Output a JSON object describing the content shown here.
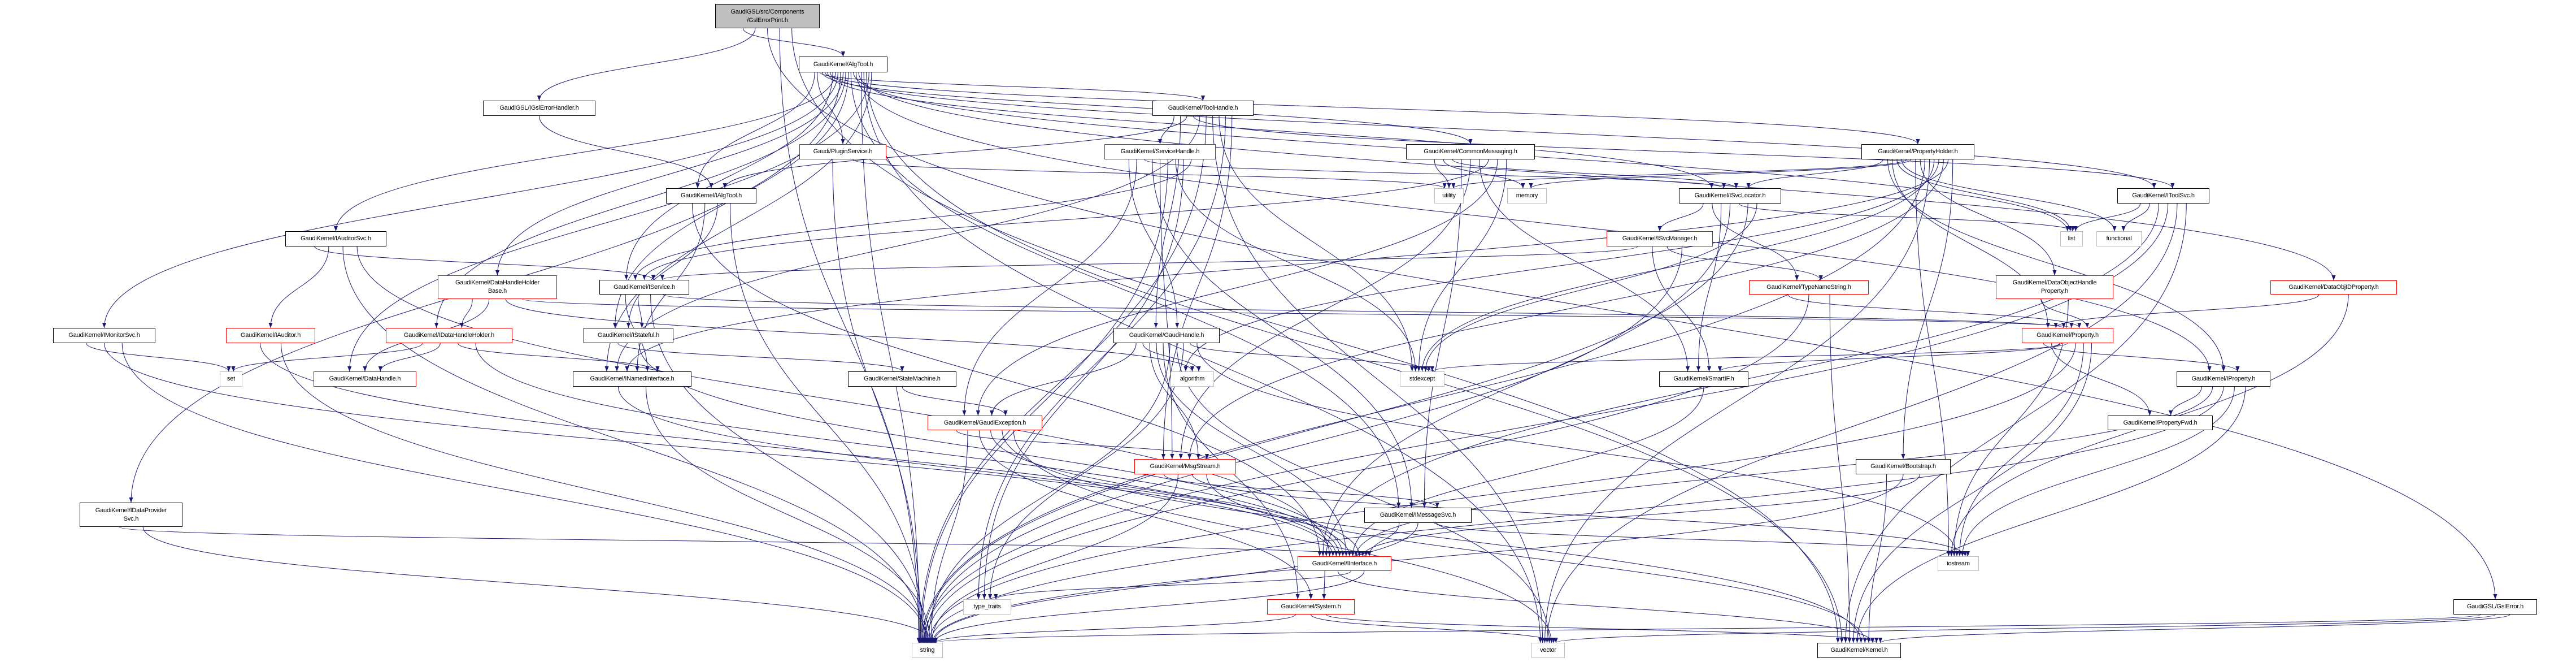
{
  "colors": {
    "edge": "#191970",
    "external_border": "#bfbfbf",
    "incomplete_border": "#ff0000",
    "root_fill": "#bfbfbf"
  },
  "nodes": [
    {
      "label": [
        "GaudiGSL/src/Components",
        "/GslErrorPrint.h"
      ],
      "style": "root"
    },
    {
      "label": [
        "GaudiKernel/AlgTool.h"
      ],
      "style": "black"
    },
    {
      "label": [
        "GaudiGSL/IGslErrorHandler.h"
      ],
      "style": "black"
    },
    {
      "label": [
        "GaudiKernel/ToolHandle.h"
      ],
      "style": "black"
    },
    {
      "label": [
        "Gaudi/PluginService.h"
      ],
      "style": "red"
    },
    {
      "label": [
        "GaudiKernel/ServiceHandle.h"
      ],
      "style": "red"
    },
    {
      "label": [
        "GaudiKernel/CommonMessaging.h"
      ],
      "style": "black"
    },
    {
      "label": [
        "GaudiKernel/PropertyHolder.h"
      ],
      "style": "black"
    },
    {
      "label": [
        "GaudiKernel/IAlgTool.h"
      ],
      "style": "black"
    },
    {
      "label": [
        "utility"
      ],
      "style": "gray"
    },
    {
      "label": [
        "memory"
      ],
      "style": "gray"
    },
    {
      "label": [
        "GaudiKernel/ISvcLocator.h"
      ],
      "style": "black"
    },
    {
      "label": [
        "GaudiKernel/IToolSvc.h"
      ],
      "style": "black"
    },
    {
      "label": [
        "list"
      ],
      "style": "gray"
    },
    {
      "label": [
        "functional"
      ],
      "style": "gray"
    },
    {
      "label": [
        "GaudiKernel/IAuditorSvc.h"
      ],
      "style": "black"
    },
    {
      "label": [
        "GaudiKernel/ISvcManager.h"
      ],
      "style": "red"
    },
    {
      "label": [
        "GaudiKernel/DataObjIDProperty.h"
      ],
      "style": "red"
    },
    {
      "label": [
        "GaudiKernel/IService.h"
      ],
      "style": "black"
    },
    {
      "label": [
        "GaudiKernel/DataHandleHolder",
        "Base.h"
      ],
      "style": "red"
    },
    {
      "label": [
        "GaudiKernel/TypeNameString.h"
      ],
      "style": "red"
    },
    {
      "label": [
        "GaudiKernel/DataObjectHandle",
        "Property.h"
      ],
      "style": "red"
    },
    {
      "label": [
        "GaudiKernel/IMonitorSvc.h"
      ],
      "style": "black"
    },
    {
      "label": [
        "GaudiKernel/IAuditor.h"
      ],
      "style": "red"
    },
    {
      "label": [
        "GaudiKernel/IDataHandleHolder.h"
      ],
      "style": "red"
    },
    {
      "label": [
        "GaudiKernel/IStateful.h"
      ],
      "style": "black"
    },
    {
      "label": [
        "GaudiKernel/GaudiHandle.h"
      ],
      "style": "black"
    },
    {
      "label": [
        "GaudiKernel/Property.h"
      ],
      "style": "red"
    },
    {
      "label": [
        "set"
      ],
      "style": "gray"
    },
    {
      "label": [
        "GaudiKernel/DataHandle.h"
      ],
      "style": "red"
    },
    {
      "label": [
        "GaudiKernel/INamedInterface.h"
      ],
      "style": "black"
    },
    {
      "label": [
        "GaudiKernel/StateMachine.h"
      ],
      "style": "black"
    },
    {
      "label": [
        "algorithm"
      ],
      "style": "gray"
    },
    {
      "label": [
        "stdexcept"
      ],
      "style": "gray"
    },
    {
      "label": [
        "GaudiKernel/SmartIF.h"
      ],
      "style": "black"
    },
    {
      "label": [
        "GaudiKernel/IProperty.h"
      ],
      "style": "black"
    },
    {
      "label": [
        "GaudiKernel/GaudiException.h"
      ],
      "style": "red"
    },
    {
      "label": [
        "GaudiKernel/PropertyFwd.h"
      ],
      "style": "black"
    },
    {
      "label": [
        "GaudiKernel/MsgStream.h"
      ],
      "style": "red"
    },
    {
      "label": [
        "GaudiKernel/Bootstrap.h"
      ],
      "style": "black"
    },
    {
      "label": [
        "GaudiKernel/IDataProvider",
        "Svc.h"
      ],
      "style": "black"
    },
    {
      "label": [
        "GaudiKernel/IMessageSvc.h"
      ],
      "style": "black"
    },
    {
      "label": [
        "GaudiKernel/IInterface.h"
      ],
      "style": "red"
    },
    {
      "label": [
        "iostream"
      ],
      "style": "gray"
    },
    {
      "label": [
        "type_traits"
      ],
      "style": "gray"
    },
    {
      "label": [
        "GaudiKernel/System.h"
      ],
      "style": "red"
    },
    {
      "label": [
        "GaudiGSL/GslError.h"
      ],
      "style": "black"
    },
    {
      "label": [
        "string"
      ],
      "style": "gray"
    },
    {
      "label": [
        "vector"
      ],
      "style": "gray"
    },
    {
      "label": [
        "GaudiKernel/Kernel.h"
      ],
      "style": "black"
    }
  ],
  "edges": [
    [
      0,
      1
    ],
    [
      0,
      2
    ],
    [
      0,
      46
    ],
    [
      0,
      47
    ],
    [
      0,
      49
    ],
    [
      1,
      8
    ],
    [
      1,
      4
    ],
    [
      1,
      3
    ],
    [
      1,
      6
    ],
    [
      1,
      7
    ],
    [
      1,
      11
    ],
    [
      1,
      12
    ],
    [
      1,
      18
    ],
    [
      1,
      15
    ],
    [
      1,
      22
    ],
    [
      1,
      40
    ],
    [
      1,
      19
    ],
    [
      1,
      24
    ],
    [
      1,
      25
    ],
    [
      1,
      41
    ],
    [
      1,
      13
    ],
    [
      1,
      35
    ],
    [
      1,
      17
    ],
    [
      1,
      47
    ],
    [
      1,
      48
    ],
    [
      1,
      49
    ],
    [
      1,
      29
    ],
    [
      1,
      30
    ],
    [
      2,
      8
    ],
    [
      3,
      5
    ],
    [
      3,
      26
    ],
    [
      3,
      8
    ],
    [
      3,
      12
    ],
    [
      3,
      30
    ],
    [
      3,
      47
    ],
    [
      3,
      48
    ],
    [
      3,
      33
    ],
    [
      3,
      44
    ],
    [
      3,
      38
    ],
    [
      4,
      47
    ],
    [
      4,
      9
    ],
    [
      5,
      26
    ],
    [
      5,
      36
    ],
    [
      5,
      11
    ],
    [
      5,
      41
    ],
    [
      5,
      38
    ],
    [
      5,
      47
    ],
    [
      5,
      33
    ],
    [
      5,
      44
    ],
    [
      5,
      18
    ],
    [
      6,
      9
    ],
    [
      6,
      10
    ],
    [
      6,
      11
    ],
    [
      6,
      41
    ],
    [
      6,
      38
    ],
    [
      6,
      34
    ],
    [
      6,
      18
    ],
    [
      6,
      36
    ],
    [
      6,
      33
    ],
    [
      7,
      11
    ],
    [
      7,
      35
    ],
    [
      7,
      27
    ],
    [
      7,
      13
    ],
    [
      7,
      14
    ],
    [
      7,
      9
    ],
    [
      7,
      10
    ],
    [
      7,
      43
    ],
    [
      7,
      21
    ],
    [
      7,
      47
    ],
    [
      7,
      48
    ],
    [
      7,
      33
    ],
    [
      7,
      32
    ],
    [
      7,
      38
    ],
    [
      7,
      30
    ],
    [
      7,
      39
    ],
    [
      8,
      42
    ],
    [
      8,
      30
    ],
    [
      8,
      25
    ],
    [
      8,
      47
    ],
    [
      11,
      16
    ],
    [
      11,
      20
    ],
    [
      11,
      34
    ],
    [
      11,
      42
    ],
    [
      11,
      13
    ],
    [
      11,
      47
    ],
    [
      11,
      33
    ],
    [
      12,
      13
    ],
    [
      12,
      14
    ],
    [
      12,
      42
    ],
    [
      12,
      47
    ],
    [
      12,
      48
    ],
    [
      12,
      49
    ],
    [
      15,
      18
    ],
    [
      15,
      23
    ],
    [
      15,
      47
    ],
    [
      15,
      42
    ],
    [
      16,
      18
    ],
    [
      16,
      34
    ],
    [
      16,
      20
    ],
    [
      16,
      47
    ],
    [
      17,
      27
    ],
    [
      17,
      43
    ],
    [
      18,
      30
    ],
    [
      18,
      25
    ],
    [
      18,
      47
    ],
    [
      18,
      27
    ],
    [
      19,
      24
    ],
    [
      19,
      29
    ],
    [
      19,
      32
    ],
    [
      19,
      27
    ],
    [
      20,
      27
    ],
    [
      20,
      47
    ],
    [
      20,
      49
    ],
    [
      21,
      27
    ],
    [
      21,
      43
    ],
    [
      22,
      28
    ],
    [
      22,
      42
    ],
    [
      22,
      47
    ],
    [
      23,
      42
    ],
    [
      23,
      47
    ],
    [
      24,
      28
    ],
    [
      24,
      29
    ],
    [
      24,
      30
    ],
    [
      24,
      42
    ],
    [
      25,
      31
    ],
    [
      25,
      42
    ],
    [
      26,
      36
    ],
    [
      26,
      32
    ],
    [
      26,
      38
    ],
    [
      26,
      42
    ],
    [
      26,
      45
    ],
    [
      26,
      47
    ],
    [
      26,
      48
    ],
    [
      26,
      44
    ],
    [
      26,
      33
    ],
    [
      26,
      43
    ],
    [
      27,
      35
    ],
    [
      27,
      37
    ],
    [
      27,
      34
    ],
    [
      27,
      33
    ],
    [
      27,
      47
    ],
    [
      27,
      43
    ],
    [
      27,
      49
    ],
    [
      30,
      42
    ],
    [
      30,
      47
    ],
    [
      31,
      36
    ],
    [
      34,
      42
    ],
    [
      35,
      37
    ],
    [
      35,
      42
    ],
    [
      35,
      47
    ],
    [
      35,
      43
    ],
    [
      35,
      49
    ],
    [
      36,
      38
    ],
    [
      36,
      47
    ],
    [
      36,
      45
    ],
    [
      36,
      42
    ],
    [
      36,
      49
    ],
    [
      36,
      48
    ],
    [
      38,
      41
    ],
    [
      38,
      47
    ],
    [
      38,
      43
    ],
    [
      38,
      49
    ],
    [
      39,
      49
    ],
    [
      39,
      47
    ],
    [
      39,
      42
    ],
    [
      40,
      42
    ],
    [
      40,
      47
    ],
    [
      41,
      42
    ],
    [
      41,
      47
    ],
    [
      41,
      43
    ],
    [
      42,
      45
    ],
    [
      42,
      49
    ],
    [
      42,
      44
    ],
    [
      42,
      47
    ],
    [
      45,
      47
    ],
    [
      45,
      48
    ],
    [
      45,
      49
    ],
    [
      46,
      47
    ],
    [
      46,
      48
    ],
    [
      46,
      49
    ]
  ]
}
